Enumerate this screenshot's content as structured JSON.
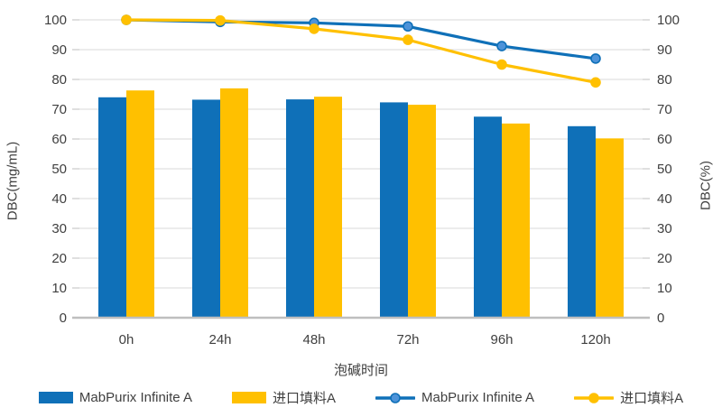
{
  "chart_data": {
    "type": "bar+line combo",
    "title": "",
    "categories": [
      "0h",
      "24h",
      "48h",
      "72h",
      "96h",
      "120h"
    ],
    "bar_series": [
      {
        "name": "MabPurix Infinite A",
        "axis": "left",
        "color": "#0F70B8",
        "values": [
          74,
          73.2,
          73.3,
          72.3,
          67.5,
          64.3
        ]
      },
      {
        "name": "进口填料A",
        "axis": "left",
        "color": "#FFC000",
        "values": [
          76.3,
          77,
          74.2,
          71.5,
          65.2,
          60.2
        ]
      }
    ],
    "line_series": [
      {
        "name": "MabPurix Infinite A",
        "axis": "right",
        "color": "#0F70B8",
        "marker_fill": "#4D93D9",
        "values": [
          100,
          99.3,
          99,
          97.8,
          91.2,
          87
        ]
      },
      {
        "name": "进口填料A",
        "axis": "right",
        "color": "#FFC000",
        "marker_fill": "#FFC000",
        "values": [
          100,
          99.8,
          97,
          93.3,
          85,
          79
        ]
      }
    ],
    "xlabel": "泡碱时间",
    "ylabel_left": "DBC(mg/mL)",
    "ylabel_right": "DBC(%)",
    "ylim_left": [
      0,
      100
    ],
    "ylim_right": [
      0,
      100
    ],
    "y_tick_step": 10,
    "grid": "horizontal",
    "legend_position": "bottom",
    "legend": [
      {
        "label": "MabPurix Infinite A",
        "swatch": "bar",
        "color": "#0F70B8"
      },
      {
        "label": "进口填料A",
        "swatch": "bar",
        "color": "#FFC000"
      },
      {
        "label": "MabPurix Infinite A",
        "swatch": "line-marker",
        "color": "#0F70B8",
        "marker_fill": "#4D93D9"
      },
      {
        "label": "进口填料A",
        "swatch": "line-marker",
        "color": "#FFC000",
        "marker_fill": "#FFC000"
      }
    ],
    "style_colors": {
      "gridline": "#D9D9D9",
      "axis_line": "#BFBFBF",
      "tick": "#BFBFBF",
      "text": "#3F3F3F"
    }
  }
}
